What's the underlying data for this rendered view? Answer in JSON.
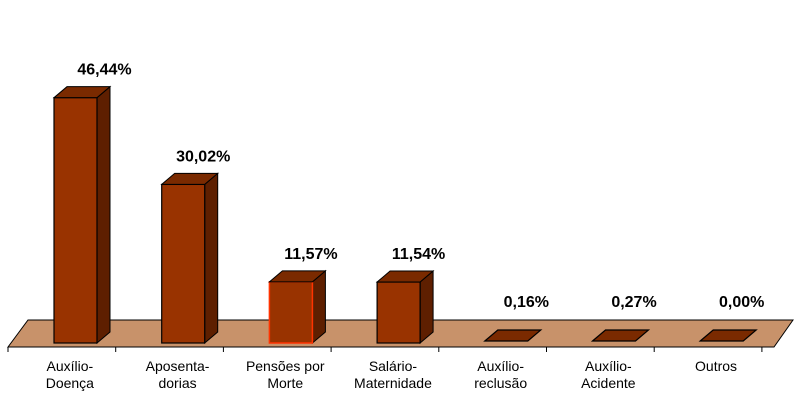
{
  "chart_data": {
    "type": "bar",
    "categories": [
      [
        "Auxílio-",
        "Doença"
      ],
      [
        "Aposenta-",
        "dorias"
      ],
      [
        "Pensões por",
        "Morte"
      ],
      [
        "Salário-",
        "Maternidade"
      ],
      [
        "Auxílio-",
        "reclusão"
      ],
      [
        "Auxílio-",
        "Acidente"
      ],
      [
        "Outros"
      ]
    ],
    "values": [
      46.44,
      30.02,
      11.57,
      11.54,
      0.16,
      0.27,
      0.0
    ],
    "data_labels": [
      "46,44%",
      "30,02%",
      "11,57%",
      "11,54%",
      "0,16%",
      "0,27%",
      "0,00%"
    ],
    "ylim": [
      0,
      50
    ],
    "three_d": true,
    "grid": false,
    "legend": "none",
    "colors": {
      "bar_front": "#993300",
      "bar_side": "#5e1f00",
      "bar_top": "#7a2a00",
      "bar_highlight_outline": "#ff3300",
      "floor": "#c8926a",
      "outline": "#000000"
    },
    "highlighted_index": 2
  }
}
